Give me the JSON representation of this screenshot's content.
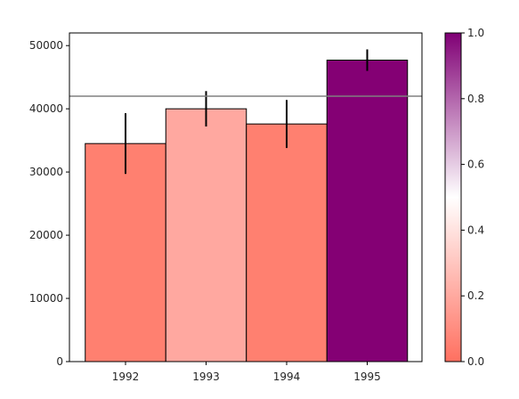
{
  "chart_data": {
    "type": "bar",
    "title": "",
    "xlabel": "",
    "ylabel": "",
    "categories": [
      "1992",
      "1993",
      "1994",
      "1995"
    ],
    "values": [
      34500,
      40000,
      37600,
      47700
    ],
    "errors": [
      4800,
      2800,
      3800,
      1700
    ],
    "bar_colors": [
      "#ff8070",
      "#ffa8a0",
      "#ff8070",
      "#840074"
    ],
    "reference_line": {
      "value": 42000,
      "color": "#808080"
    },
    "ylim": [
      0,
      52000
    ],
    "yticks": [
      0,
      10000,
      20000,
      30000,
      40000,
      50000
    ],
    "ytick_labels": [
      "0",
      "10000",
      "20000",
      "30000",
      "40000",
      "50000"
    ],
    "grid": false,
    "legend": "none",
    "colorbar": {
      "range": [
        0,
        1
      ],
      "ticks": [
        0,
        0.2,
        0.4,
        0.6,
        0.8,
        1
      ],
      "tick_labels": [
        "0.0",
        "0.2",
        "0.4",
        "0.6",
        "0.8",
        "1.0"
      ],
      "colors": [
        "#ff7060",
        "#ffffff",
        "#800075"
      ]
    }
  }
}
